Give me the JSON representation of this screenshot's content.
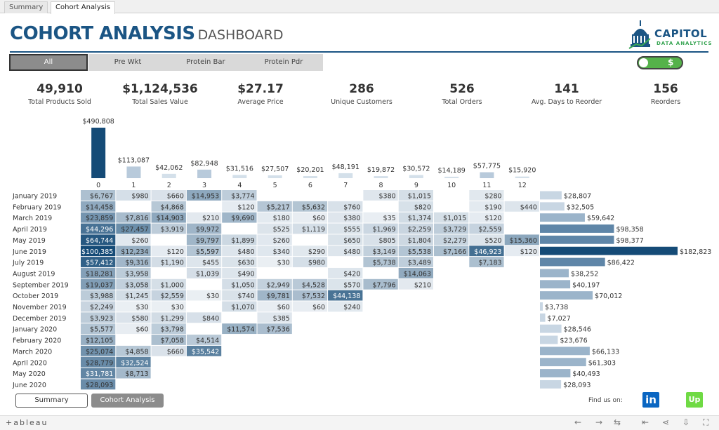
{
  "tabs": [
    "Summary",
    "Cohort Analysis"
  ],
  "header": {
    "title_bold": "COHORT ANALYSIS",
    "title_light": "DASHBOARD"
  },
  "logo": {
    "name": "CAPITOL",
    "sub": "DATA ANALYTICS"
  },
  "filters": [
    "All",
    "Pre Wkt",
    "Protein Bar",
    "Protein Pdr"
  ],
  "toggle": {
    "symbol": "$"
  },
  "kpis": [
    {
      "value": "49,910",
      "label": "Total Products Sold"
    },
    {
      "value": "$1,124,536",
      "label": "Total Sales Value"
    },
    {
      "value": "$27.17",
      "label": "Average Price"
    },
    {
      "value": "286",
      "label": "Unique Customers"
    },
    {
      "value": "526",
      "label": "Total Orders"
    },
    {
      "value": "141",
      "label": "Avg. Days to Reorder"
    },
    {
      "value": "156",
      "label": "Reorders"
    }
  ],
  "nav": {
    "summary": "Summary",
    "cohort": "Cohort Analysis"
  },
  "social": {
    "find_us": "Find us on:",
    "linkedin": "in",
    "upwork": "Up"
  },
  "footer": {
    "brand": "+ableau"
  },
  "colors": {
    "dark": "#154b77",
    "accent": "#1b5584",
    "green": "#55b24a"
  },
  "chart_data": [
    {
      "type": "bar",
      "categories": [
        "0",
        "1",
        "2",
        "3",
        "4",
        "5",
        "6",
        "7",
        "8",
        "9",
        "10",
        "11",
        "12"
      ],
      "values": [
        490808,
        113087,
        42062,
        82948,
        31516,
        27507,
        20201,
        48191,
        19872,
        30572,
        14189,
        57775,
        15920
      ],
      "labels": [
        "$490,808",
        "$113,087",
        "$42,062",
        "$82,948",
        "$31,516",
        "$27,507",
        "$20,201",
        "$48,191",
        "$19,872",
        "$30,572",
        "$14,189",
        "$57,775",
        "$15,920"
      ]
    },
    {
      "type": "heatmap",
      "rows": [
        "January 2019",
        "February 2019",
        "March 2019",
        "April 2019",
        "May 2019",
        "June 2019",
        "July 2019",
        "August 2019",
        "September 2019",
        "October 2019",
        "November 2019",
        "December 2019",
        "January 2020",
        "February 2020",
        "March 2020",
        "April 2020",
        "May 2020",
        "June 2020"
      ],
      "columns": [
        "0",
        "1",
        "2",
        "3",
        "4",
        "5",
        "6",
        "7",
        "8",
        "9",
        "10",
        "11",
        "12"
      ],
      "cells": [
        [
          "$6,767",
          "$980",
          "$660",
          "$14,953",
          "$3,774",
          "",
          "",
          "",
          "$380",
          "$1,015",
          "",
          "$280",
          ""
        ],
        [
          "$14,458",
          "",
          "$4,868",
          "",
          "$120",
          "$5,217",
          "$5,632",
          "$760",
          "",
          "$820",
          "",
          "$190",
          "$440"
        ],
        [
          "$23,859",
          "$7,816",
          "$14,903",
          "$210",
          "$9,690",
          "$180",
          "$60",
          "$380",
          "$35",
          "$1,374",
          "$1,015",
          "$120",
          ""
        ],
        [
          "$44,296",
          "$27,457",
          "$3,919",
          "$9,972",
          "",
          "$525",
          "$1,119",
          "$555",
          "$1,969",
          "$2,259",
          "$3,729",
          "$2,559",
          ""
        ],
        [
          "$64,744",
          "$260",
          "",
          "$9,797",
          "$1,899",
          "$260",
          "",
          "$650",
          "$805",
          "$1,804",
          "$2,279",
          "$520",
          "$15,360"
        ],
        [
          "$100,385",
          "$12,234",
          "$120",
          "$5,597",
          "$480",
          "$340",
          "$290",
          "$480",
          "$3,149",
          "$5,538",
          "$7,166",
          "$46,923",
          "$120"
        ],
        [
          "$57,412",
          "$9,316",
          "$1,190",
          "$455",
          "$630",
          "$30",
          "$980",
          "",
          "$5,738",
          "$3,489",
          "",
          "$7,183",
          ""
        ],
        [
          "$18,281",
          "$3,958",
          "",
          "$1,039",
          "$490",
          "",
          "",
          "$420",
          "",
          "$14,063",
          "",
          "",
          ""
        ],
        [
          "$19,037",
          "$3,058",
          "$1,000",
          "",
          "$1,050",
          "$2,949",
          "$4,528",
          "$570",
          "$7,796",
          "$210",
          "",
          "",
          ""
        ],
        [
          "$3,988",
          "$1,245",
          "$2,559",
          "$30",
          "$740",
          "$9,781",
          "$7,532",
          "$44,138",
          "",
          "",
          "",
          "",
          ""
        ],
        [
          "$2,249",
          "$30",
          "$30",
          "",
          "$1,070",
          "$60",
          "$60",
          "$240",
          "",
          "",
          "",
          "",
          ""
        ],
        [
          "$3,923",
          "$580",
          "$1,299",
          "$840",
          "",
          "$385",
          "",
          "",
          "",
          "",
          "",
          "",
          ""
        ],
        [
          "$5,577",
          "$60",
          "$3,798",
          "",
          "$11,574",
          "$7,536",
          "",
          "",
          "",
          "",
          "",
          "",
          ""
        ],
        [
          "$12,105",
          "",
          "$7,058",
          "$4,514",
          "",
          "",
          "",
          "",
          "",
          "",
          "",
          "",
          ""
        ],
        [
          "$25,074",
          "$4,858",
          "$660",
          "$35,542",
          "",
          "",
          "",
          "",
          "",
          "",
          "",
          "",
          ""
        ],
        [
          "$28,779",
          "$32,524",
          "",
          "",
          "",
          "",
          "",
          "",
          "",
          "",
          "",
          "",
          ""
        ],
        [
          "$31,781",
          "$8,713",
          "",
          "",
          "",
          "",
          "",
          "",
          "",
          "",
          "",
          "",
          ""
        ],
        [
          "$28,093",
          "",
          "",
          "",
          "",
          "",
          "",
          "",
          "",
          "",
          "",
          "",
          ""
        ]
      ]
    },
    {
      "type": "bar",
      "orientation": "horizontal",
      "categories": [
        "January 2019",
        "February 2019",
        "March 2019",
        "April 2019",
        "May 2019",
        "June 2019",
        "July 2019",
        "August 2019",
        "September 2019",
        "October 2019",
        "November 2019",
        "December 2019",
        "January 2020",
        "February 2020",
        "March 2020",
        "April 2020",
        "May 2020",
        "June 2020"
      ],
      "values": [
        28807,
        32505,
        59642,
        98358,
        98377,
        182823,
        86422,
        38252,
        40197,
        70012,
        3738,
        7027,
        28546,
        23676,
        66133,
        61303,
        40493,
        28093
      ],
      "labels": [
        "$28,807",
        "$32,505",
        "$59,642",
        "$98,358",
        "$98,377",
        "$182,823",
        "$86,422",
        "$38,252",
        "$40,197",
        "$70,012",
        "$3,738",
        "$7,027",
        "$28,546",
        "$23,676",
        "$66,133",
        "$61,303",
        "$40,493",
        "$28,093"
      ]
    }
  ]
}
